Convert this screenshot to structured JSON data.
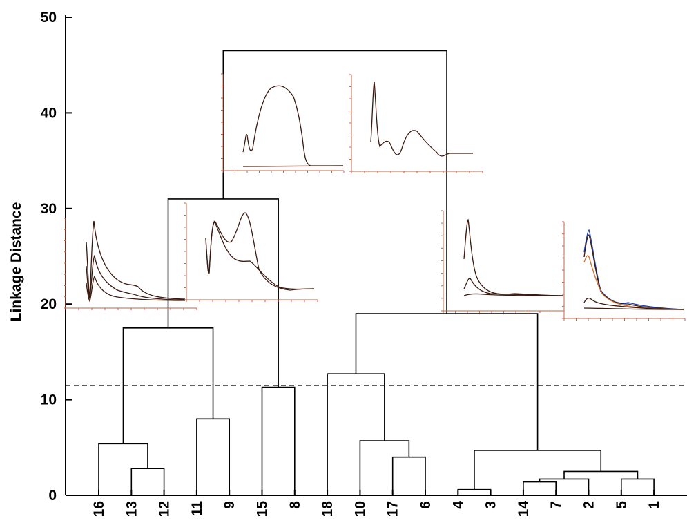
{
  "chart_data": {
    "type": "dendrogram",
    "ylabel": "Linkage Distance",
    "ylim": [
      0,
      50
    ],
    "yticks": [
      0,
      10,
      20,
      30,
      40,
      50
    ],
    "grid": false,
    "leaf_order": [
      "16",
      "13",
      "12",
      "11",
      "9",
      "15",
      "8",
      "18",
      "10",
      "17",
      "6",
      "4",
      "3",
      "14",
      "7",
      "2",
      "5",
      "1"
    ],
    "merges": [
      {
        "id": "m1",
        "children": [
          "13",
          "12"
        ],
        "height": 2.8
      },
      {
        "id": "m2",
        "children": [
          "16",
          "m1"
        ],
        "height": 5.4
      },
      {
        "id": "m3",
        "children": [
          "11",
          "9"
        ],
        "height": 8.0
      },
      {
        "id": "m4",
        "children": [
          "m2",
          "m3"
        ],
        "height": 17.5
      },
      {
        "id": "m5",
        "children": [
          "15",
          "8"
        ],
        "height": 11.3
      },
      {
        "id": "m6",
        "children": [
          "m4",
          "m5"
        ],
        "height": 31.0
      },
      {
        "id": "m7",
        "children": [
          "17",
          "6"
        ],
        "height": 4.0
      },
      {
        "id": "m8",
        "children": [
          "10",
          "m7"
        ],
        "height": 5.7
      },
      {
        "id": "m9",
        "children": [
          "18",
          "m8"
        ],
        "height": 12.7
      },
      {
        "id": "m10",
        "children": [
          "4",
          "3"
        ],
        "height": 0.6
      },
      {
        "id": "m11",
        "children": [
          "14",
          "7"
        ],
        "height": 1.4
      },
      {
        "id": "m12",
        "children": [
          "m11",
          "2"
        ],
        "height": 1.7
      },
      {
        "id": "m13",
        "children": [
          "5",
          "1"
        ],
        "height": 1.7
      },
      {
        "id": "m14",
        "children": [
          "m12",
          "m13"
        ],
        "height": 2.5
      },
      {
        "id": "m15",
        "children": [
          "m10",
          "m14"
        ],
        "height": 4.7
      },
      {
        "id": "m16",
        "children": [
          "m9",
          "m15"
        ],
        "height": 19.0
      },
      {
        "id": "m17",
        "children": [
          "m6",
          "m16"
        ],
        "height": 46.5
      }
    ],
    "cutoff_line": {
      "y": 11.5,
      "style": "dashed"
    },
    "insets": [
      {
        "id": "inset-1",
        "description": "UV spectra of cluster 16/13/12",
        "curves": 3
      },
      {
        "id": "inset-2",
        "description": "UV spectra of cluster 11/9/15/8",
        "curves": 2
      },
      {
        "id": "inset-3",
        "description": "spectrum with broad band",
        "curves": 2
      },
      {
        "id": "inset-4",
        "description": "spectrum with sharp peak",
        "curves": 1
      },
      {
        "id": "inset-5",
        "description": "UV spectra of cluster 18/10/17/6",
        "curves": 3
      },
      {
        "id": "inset-6",
        "description": "UV spectra of cluster 4/3/14/7/2/5/1",
        "curves": 5
      }
    ],
    "colors": {
      "line": "#000000",
      "inset_axis": "#c0654a",
      "inset_curve": "#3a1a10",
      "inset_blue": "#1f3fa8",
      "inset_orange": "#d06a2a"
    }
  }
}
